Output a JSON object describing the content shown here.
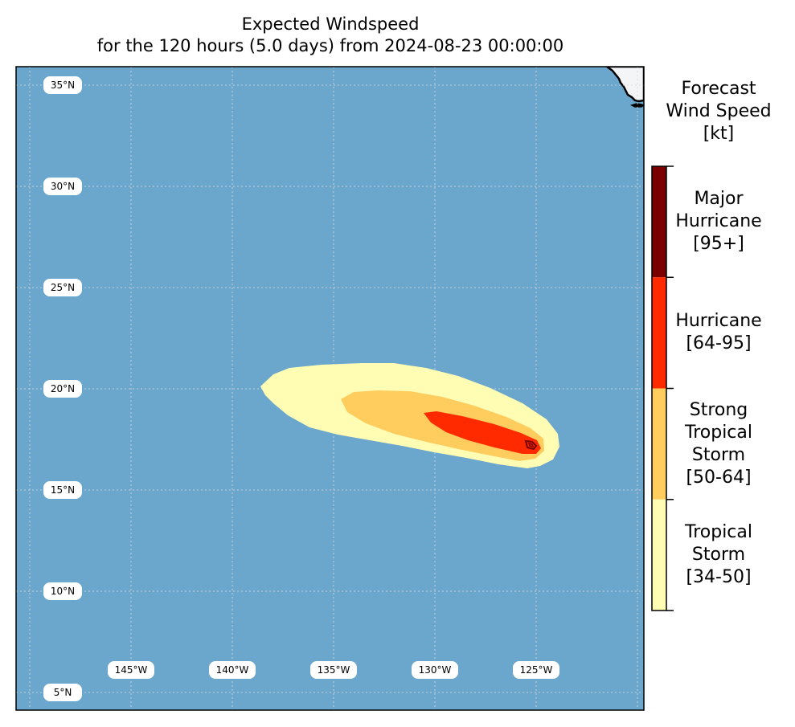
{
  "title": {
    "line1": "Expected Windspeed",
    "line2": "for the 120 hours (5.0 days) from 2024-08-23 00:00:00"
  },
  "map": {
    "ocean_color": "#6ba6cd",
    "land_color": "#f4f5f7",
    "lat_labels": [
      "35°N",
      "30°N",
      "25°N",
      "20°N",
      "15°N",
      "10°N",
      "5°N"
    ],
    "lon_labels": [
      "145°W",
      "140°W",
      "135°W",
      "130°W",
      "125°W"
    ]
  },
  "colorbar": {
    "title_lines": [
      "Forecast",
      "Wind Speed",
      "[kt]"
    ],
    "categories": [
      {
        "lines": [
          "Major",
          "Hurricane",
          "[95+]"
        ],
        "color": "#7a0000"
      },
      {
        "lines": [
          "Hurricane",
          "[64-95]"
        ],
        "color": "#ff2a00"
      },
      {
        "lines": [
          "Strong",
          "Tropical",
          "Storm",
          "[50-64]"
        ],
        "color": "#ffcc5e"
      },
      {
        "lines": [
          "Tropical",
          "Storm",
          "[34-50]"
        ],
        "color": "#fffcb4"
      }
    ]
  }
}
